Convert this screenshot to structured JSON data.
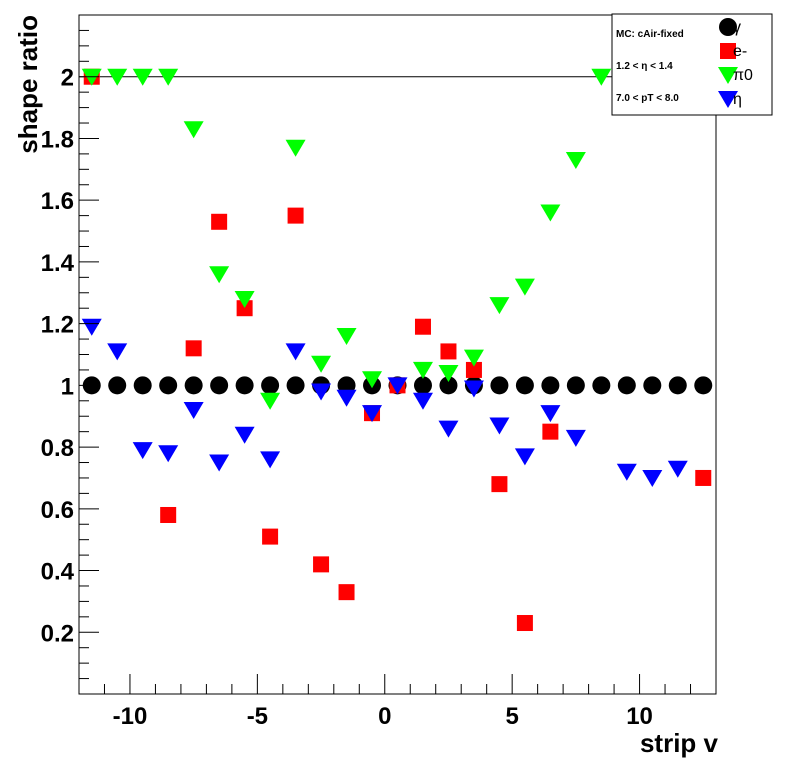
{
  "chart_data": {
    "type": "scatter",
    "title": "",
    "xlabel": "strip v",
    "ylabel": "shape ratio",
    "xlim": [
      -12,
      13
    ],
    "ylim": [
      0,
      2.2
    ],
    "xticks": [
      -10,
      -5,
      0,
      5,
      10
    ],
    "xtick_labels": [
      "-10",
      "-5",
      "0",
      "5",
      "10"
    ],
    "yticks": [
      0.2,
      0.4,
      0.6,
      0.8,
      1.0,
      1.2,
      1.4,
      1.6,
      1.8,
      2.0
    ],
    "ytick_labels": [
      "0.2",
      "0.4",
      "0.6",
      "0.8",
      "1",
      "1.2",
      "1.4",
      "1.6",
      "1.8",
      "2"
    ],
    "reference_line_y": 2.0,
    "grid": false,
    "legend_position": "top-right",
    "legend_info": [
      "MC: cAir-fixed",
      "1.2 < η < 1.4",
      "7.0 < pT < 8.0"
    ],
    "series": [
      {
        "name": "γ",
        "marker": "circle",
        "color": "#000000",
        "points": [
          [
            -11.5,
            1
          ],
          [
            -10.5,
            1
          ],
          [
            -9.5,
            1
          ],
          [
            -8.5,
            1
          ],
          [
            -7.5,
            1
          ],
          [
            -6.5,
            1
          ],
          [
            -5.5,
            1
          ],
          [
            -4.5,
            1
          ],
          [
            -3.5,
            1
          ],
          [
            -2.5,
            1
          ],
          [
            -1.5,
            1
          ],
          [
            -0.5,
            1
          ],
          [
            0.5,
            1
          ],
          [
            1.5,
            1
          ],
          [
            2.5,
            1
          ],
          [
            3.5,
            1
          ],
          [
            4.5,
            1
          ],
          [
            5.5,
            1
          ],
          [
            6.5,
            1
          ],
          [
            7.5,
            1
          ],
          [
            8.5,
            1
          ],
          [
            9.5,
            1
          ],
          [
            10.5,
            1
          ],
          [
            11.5,
            1
          ],
          [
            12.5,
            1
          ]
        ]
      },
      {
        "name": "e-",
        "marker": "square",
        "color": "#ff0000",
        "points": [
          [
            -11.5,
            2.0
          ],
          [
            -8.5,
            0.58
          ],
          [
            -7.5,
            1.12
          ],
          [
            -6.5,
            1.53
          ],
          [
            -5.5,
            1.25
          ],
          [
            -4.5,
            0.51
          ],
          [
            -3.5,
            1.55
          ],
          [
            -2.5,
            0.42
          ],
          [
            -1.5,
            0.33
          ],
          [
            -0.5,
            0.91
          ],
          [
            0.5,
            1.0
          ],
          [
            1.5,
            1.19
          ],
          [
            2.5,
            1.11
          ],
          [
            3.5,
            1.05
          ],
          [
            4.5,
            0.68
          ],
          [
            5.5,
            0.23
          ],
          [
            6.5,
            0.85
          ],
          [
            12.5,
            0.7
          ]
        ]
      },
      {
        "name": "π0",
        "marker": "triangle-down",
        "color": "#00ff00",
        "points": [
          [
            -11.5,
            2.0
          ],
          [
            -10.5,
            2.0
          ],
          [
            -9.5,
            2.0
          ],
          [
            -8.5,
            2.0
          ],
          [
            -7.5,
            1.83
          ],
          [
            -6.5,
            1.36
          ],
          [
            -5.5,
            1.28
          ],
          [
            -4.5,
            0.95
          ],
          [
            -3.5,
            1.77
          ],
          [
            -2.5,
            1.07
          ],
          [
            -1.5,
            1.16
          ],
          [
            -0.5,
            1.02
          ],
          [
            1.5,
            1.05
          ],
          [
            2.5,
            1.04
          ],
          [
            3.5,
            1.09
          ],
          [
            4.5,
            1.26
          ],
          [
            5.5,
            1.32
          ],
          [
            6.5,
            1.56
          ],
          [
            7.5,
            1.73
          ],
          [
            8.5,
            2.0
          ]
        ]
      },
      {
        "name": "η",
        "marker": "triangle-down",
        "color": "#0000ff",
        "points": [
          [
            -11.5,
            1.19
          ],
          [
            -10.5,
            1.11
          ],
          [
            -9.5,
            0.79
          ],
          [
            -8.5,
            0.78
          ],
          [
            -7.5,
            0.92
          ],
          [
            -6.5,
            0.75
          ],
          [
            -5.5,
            0.84
          ],
          [
            -4.5,
            0.76
          ],
          [
            -3.5,
            1.11
          ],
          [
            -2.5,
            0.98
          ],
          [
            -1.5,
            0.96
          ],
          [
            -0.5,
            0.91
          ],
          [
            0.5,
            1.0
          ],
          [
            1.5,
            0.95
          ],
          [
            2.5,
            0.86
          ],
          [
            3.5,
            0.99
          ],
          [
            4.5,
            0.87
          ],
          [
            5.5,
            0.77
          ],
          [
            6.5,
            0.91
          ],
          [
            7.5,
            0.83
          ],
          [
            9.5,
            0.72
          ],
          [
            10.5,
            0.7
          ],
          [
            11.5,
            0.73
          ]
        ]
      }
    ]
  }
}
